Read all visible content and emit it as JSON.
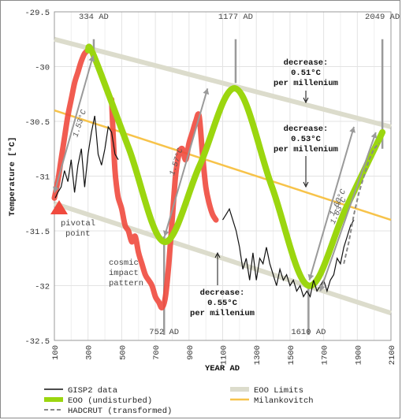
{
  "chart_data": {
    "type": "line",
    "xlabel": "YEAR AD",
    "ylabel": "Temperature [°C]",
    "xlim": [
      100,
      2100
    ],
    "ylim": [
      -32.5,
      -29.5
    ],
    "xticks": [
      100,
      300,
      500,
      700,
      900,
      1100,
      1300,
      1500,
      1700,
      1900,
      2100
    ],
    "yticks": [
      -29.5,
      -30,
      -30.5,
      -31,
      -31.5,
      -32,
      -32.5
    ],
    "ytick_labels": [
      "-29.5",
      "-30",
      "-30.5",
      "-31",
      "-31.5",
      "-32",
      "-32.5"
    ],
    "grid": true,
    "legend_position": "bottom",
    "legend": [
      {
        "label": "GISP2 data",
        "color": "#111111",
        "style": "solid-thin"
      },
      {
        "label": "EOO (undisturbed)",
        "color": "#9bd60f",
        "style": "solid-thick"
      },
      {
        "label": "HADCRUT (transformed)",
        "color": "#888888",
        "style": "dashed"
      },
      {
        "label": "EOO Limits",
        "color": "#dcdccc",
        "style": "solid-thick"
      },
      {
        "label": "Milankovitch",
        "color": "#f7c34a",
        "style": "solid"
      }
    ],
    "series": [
      {
        "name": "GISP2 data",
        "color": "#111111",
        "x": [
          105,
          120,
          140,
          160,
          180,
          200,
          220,
          240,
          260,
          280,
          300,
          320,
          340,
          360,
          380,
          400,
          420,
          440,
          460,
          480,
          1100,
          1120,
          1140,
          1160,
          1180,
          1200,
          1220,
          1240,
          1260,
          1280,
          1300,
          1320,
          1340,
          1360,
          1380,
          1400,
          1420,
          1440,
          1460,
          1480,
          1500,
          1520,
          1540,
          1560,
          1580,
          1600,
          1620,
          1640,
          1660,
          1680,
          1700,
          1720,
          1740,
          1760,
          1780,
          1800,
          1820,
          1840,
          1860,
          1880
        ],
        "y": [
          -31.2,
          -31.15,
          -31.1,
          -30.95,
          -31.05,
          -30.85,
          -31.15,
          -30.9,
          -30.75,
          -31.1,
          -30.8,
          -30.6,
          -30.45,
          -30.8,
          -30.9,
          -30.75,
          -30.55,
          -30.6,
          -30.8,
          -30.85,
          -31.4,
          -31.35,
          -31.3,
          -31.4,
          -31.5,
          -31.65,
          -31.85,
          -31.75,
          -31.95,
          -31.7,
          -31.95,
          -31.75,
          -31.8,
          -31.65,
          -31.8,
          -31.9,
          -32.0,
          -31.85,
          -31.95,
          -31.9,
          -32.0,
          -31.95,
          -32.05,
          -32.0,
          -32.1,
          -32.05,
          -32.1,
          -31.95,
          -32.05,
          -32.0,
          -31.95,
          -32.05,
          -31.95,
          -31.9,
          -31.75,
          -31.8,
          -31.65,
          -31.55,
          -31.45,
          -31.4
        ]
      },
      {
        "name": "EOO (undisturbed)",
        "color": "#9bd60f",
        "x": [
          334,
          543,
          752,
          964,
          1177,
          1393,
          1610,
          1830,
          2049
        ],
        "y": [
          -29.9,
          -30.75,
          -31.6,
          -30.9,
          -30.2,
          -31.1,
          -32.0,
          -31.3,
          -30.6
        ]
      },
      {
        "name": "cosmic impact pattern",
        "color": "#f04a3e",
        "x": [
          100,
          120,
          140,
          160,
          180,
          200,
          220,
          240,
          260,
          280,
          300,
          440,
          450,
          460,
          470,
          480,
          500,
          520,
          540,
          560,
          580,
          600,
          620,
          640,
          660,
          680,
          700,
          720,
          740,
          760,
          780,
          800,
          820,
          840,
          860,
          880,
          900,
          920,
          940,
          960,
          980,
          1000,
          1020,
          1040,
          1060
        ],
        "y": [
          -31.2,
          -31.05,
          -30.85,
          -30.65,
          -30.45,
          -30.3,
          -30.15,
          -30.05,
          -29.95,
          -29.88,
          -29.85,
          -30.3,
          -30.65,
          -30.95,
          -31.1,
          -31.2,
          -31.3,
          -31.45,
          -31.5,
          -31.6,
          -31.55,
          -31.7,
          -31.8,
          -31.9,
          -31.95,
          -32.0,
          -32.1,
          -32.15,
          -32.2,
          -32.1,
          -31.8,
          -31.4,
          -31.0,
          -30.8,
          -30.75,
          -30.85,
          -30.7,
          -30.6,
          -30.5,
          -30.45,
          -30.8,
          -31.1,
          -31.25,
          -31.35,
          -31.4
        ]
      },
      {
        "name": "HADCRUT (transformed)",
        "color": "#888888",
        "x": [
          1820,
          1850,
          1880,
          1910,
          1940,
          1970,
          2000,
          2030
        ],
        "y": [
          -31.8,
          -31.6,
          -31.35,
          -31.15,
          -31.0,
          -30.85,
          -30.75,
          -30.7
        ]
      },
      {
        "name": "EOO Limits (upper)",
        "color": "#dcdccc",
        "x": [
          100,
          2100
        ],
        "y": [
          -29.75,
          -30.55
        ]
      },
      {
        "name": "EOO Limits (lower)",
        "color": "#dcdccc",
        "x": [
          100,
          2100
        ],
        "y": [
          -31.25,
          -32.25
        ]
      },
      {
        "name": "Milankovitch",
        "color": "#f7c34a",
        "x": [
          100,
          2100
        ],
        "y": [
          -30.4,
          -31.4
        ]
      }
    ],
    "annotations": {
      "years": [
        {
          "label": "334 AD",
          "x": 334,
          "y_from": -29.75,
          "y_to": -29.95
        },
        {
          "label": "1177 AD",
          "x": 1177,
          "y_from": -29.75,
          "y_to": -30.15
        },
        {
          "label": "2049 AD",
          "x": 2049,
          "y_from": -29.75,
          "y_to": -30.75
        },
        {
          "label": "752 AD",
          "x": 752,
          "y_from": -31.55,
          "y_to": -32.45
        },
        {
          "label": "1610 AD",
          "x": 1610,
          "y_from": -32.0,
          "y_to": -32.45
        }
      ],
      "rates": [
        {
          "label": "1.53°C",
          "from": [
            100,
            -31.15
          ],
          "to": [
            330,
            -29.9
          ],
          "rotate": -72
        },
        {
          "label": "1.57°C",
          "from": [
            755,
            -31.55
          ],
          "to": [
            1010,
            -30.2
          ],
          "rotate": -72
        },
        {
          "label": "1.60°C",
          "from": [
            1615,
            -31.95
          ],
          "to": [
            1880,
            -30.55
          ],
          "rotate": -65
        },
        {
          "label": "1.63°C",
          "from": [
            1680,
            -32.05
          ],
          "to": [
            2010,
            -30.6
          ],
          "rotate": -65
        }
      ],
      "texts": {
        "decrease_label": "decrease:",
        "rate_upper": "0.51°C",
        "rate_mid": "0.53°C",
        "rate_lower": "0.55°C",
        "per_millenium": "per millenium",
        "pivotal_point": "pivotal",
        "pivotal_point2": "point",
        "cosmic1": "cosmic",
        "cosmic2": "impact",
        "cosmic3": "pattern"
      }
    }
  }
}
